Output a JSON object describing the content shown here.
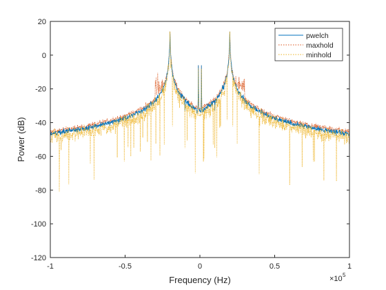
{
  "chart_data": {
    "type": "line",
    "xlabel": "Frequency (Hz)",
    "ylabel": "Power (dB)",
    "x_exponent_label": "×10",
    "x_exponent_power": "5",
    "xlim": [
      -1,
      1
    ],
    "ylim": [
      -120,
      20
    ],
    "x_ticks": [
      -1,
      -0.5,
      0,
      0.5,
      1
    ],
    "x_tick_labels": [
      "-1",
      "-0.5",
      "0",
      "0.5",
      "1"
    ],
    "y_ticks": [
      20,
      0,
      -20,
      -40,
      -60,
      -80,
      -100,
      -120
    ],
    "y_tick_labels": [
      "20",
      "0",
      "-20",
      "-40",
      "-60",
      "-80",
      "-100",
      "-120"
    ],
    "grid": false,
    "legend_position": "top-right",
    "series": [
      {
        "name": "pwelch",
        "color": "#0072BD",
        "style": "solid",
        "noise_floor_db": -62,
        "band_level_db": -27,
        "band_ranges": [
          [
            -0.3,
            -0.22
          ],
          [
            0.22,
            0.3
          ]
        ],
        "tone_peaks": [
          {
            "x": -0.2,
            "y": 14
          },
          {
            "x": 0.2,
            "y": 14
          },
          {
            "x": -0.1,
            "y": -33
          },
          {
            "x": 0.1,
            "y": -33
          },
          {
            "x": -0.01,
            "y": -6
          },
          {
            "x": 0.01,
            "y": -6
          }
        ]
      },
      {
        "name": "maxhold",
        "color": "#D95319",
        "style": "dotted",
        "noise_floor_db": -57,
        "band_level_db": -18,
        "band_ranges": [
          [
            -0.3,
            -0.22
          ],
          [
            0.22,
            0.3
          ]
        ],
        "tone_peaks": [
          {
            "x": -0.2,
            "y": 14
          },
          {
            "x": 0.2,
            "y": 14
          },
          {
            "x": -0.1,
            "y": -28
          },
          {
            "x": 0.1,
            "y": -28
          },
          {
            "x": -0.01,
            "y": -6
          },
          {
            "x": 0.01,
            "y": -6
          }
        ]
      },
      {
        "name": "minhold",
        "color": "#EDB120",
        "style": "dotted",
        "noise_floor_db": -75,
        "band_level_db": -75,
        "band_ranges": [],
        "tone_peaks": [
          {
            "x": -0.2,
            "y": 14
          },
          {
            "x": 0.2,
            "y": 14
          },
          {
            "x": -0.1,
            "y": -55
          },
          {
            "x": 0.1,
            "y": -55
          },
          {
            "x": -0.01,
            "y": -8
          },
          {
            "x": 0.01,
            "y": -8
          }
        ]
      }
    ]
  }
}
